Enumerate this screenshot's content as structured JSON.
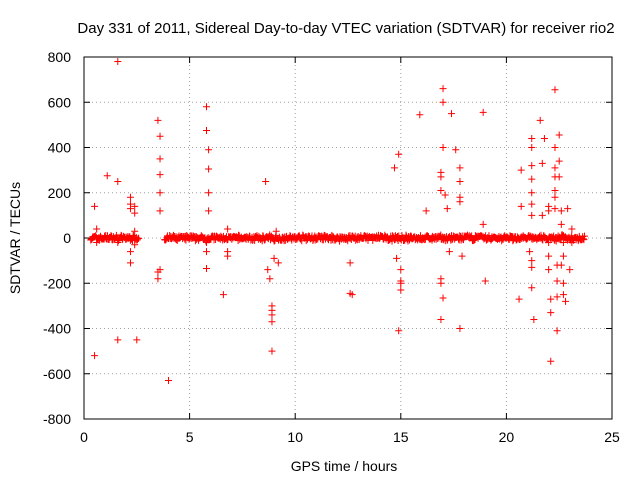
{
  "chart_data": {
    "type": "scatter",
    "title": "Day 331 of 2011, Sidereal Day-to-day VTEC variation (SDTVAR) for receiver rio2",
    "xlabel": "GPS time / hours",
    "ylabel": "SDTVAR / TECUs",
    "xlim": [
      0,
      25
    ],
    "ylim": [
      -800,
      800
    ],
    "xticks": [
      0,
      5,
      10,
      15,
      20,
      25
    ],
    "yticks": [
      -800,
      -600,
      -400,
      -200,
      0,
      200,
      400,
      600,
      800
    ],
    "xtick_labels": [
      "0",
      "5",
      "10",
      "15",
      "20",
      "25"
    ],
    "ytick_labels": [
      "-800",
      "-600",
      "-400",
      "-200",
      "0",
      "200",
      "400",
      "600",
      "800"
    ],
    "grid": true,
    "marker": "+",
    "color": "#ff0000",
    "dense_band": {
      "description": "continuous band of points near zero",
      "segments": [
        [
          0.3,
          2.6
        ],
        [
          3.8,
          23.7
        ]
      ],
      "y_range": [
        -15,
        15
      ]
    },
    "series": [
      {
        "name": "SDTVAR",
        "points": [
          [
            0.5,
            140
          ],
          [
            0.6,
            40
          ],
          [
            0.6,
            -20
          ],
          [
            0.5,
            -520
          ],
          [
            1.1,
            275
          ],
          [
            1.6,
            780
          ],
          [
            1.6,
            250
          ],
          [
            1.6,
            -20
          ],
          [
            1.6,
            -450
          ],
          [
            2.2,
            180
          ],
          [
            2.2,
            150
          ],
          [
            2.2,
            130
          ],
          [
            2.2,
            -60
          ],
          [
            2.2,
            -110
          ],
          [
            2.4,
            140
          ],
          [
            2.4,
            110
          ],
          [
            2.4,
            30
          ],
          [
            2.4,
            -30
          ],
          [
            2.5,
            -450
          ],
          [
            3.5,
            520
          ],
          [
            3.6,
            450
          ],
          [
            3.6,
            350
          ],
          [
            3.6,
            280
          ],
          [
            3.6,
            200
          ],
          [
            3.6,
            120
          ],
          [
            3.5,
            -150
          ],
          [
            3.5,
            -180
          ],
          [
            3.6,
            -140
          ],
          [
            4.0,
            -630
          ],
          [
            5.8,
            580
          ],
          [
            5.8,
            475
          ],
          [
            5.9,
            390
          ],
          [
            5.9,
            305
          ],
          [
            5.9,
            200
          ],
          [
            5.9,
            120
          ],
          [
            5.8,
            -20
          ],
          [
            5.8,
            -60
          ],
          [
            5.8,
            -135
          ],
          [
            6.6,
            -250
          ],
          [
            6.8,
            40
          ],
          [
            6.8,
            -60
          ],
          [
            6.8,
            -80
          ],
          [
            8.6,
            250
          ],
          [
            8.7,
            -140
          ],
          [
            8.8,
            -180
          ],
          [
            8.9,
            -300
          ],
          [
            8.9,
            -320
          ],
          [
            8.9,
            -340
          ],
          [
            8.9,
            -370
          ],
          [
            8.9,
            -500
          ],
          [
            9.0,
            -90
          ],
          [
            9.1,
            30
          ],
          [
            9.2,
            -110
          ],
          [
            12.6,
            -245
          ],
          [
            12.7,
            -250
          ],
          [
            12.6,
            -110
          ],
          [
            14.7,
            310
          ],
          [
            14.8,
            -90
          ],
          [
            14.9,
            370
          ],
          [
            15.0,
            -140
          ],
          [
            15.0,
            -190
          ],
          [
            15.0,
            -200
          ],
          [
            15.0,
            -230
          ],
          [
            14.9,
            -410
          ],
          [
            15.9,
            545
          ],
          [
            16.2,
            120
          ],
          [
            16.9,
            290
          ],
          [
            16.9,
            270
          ],
          [
            16.9,
            210
          ],
          [
            16.9,
            -180
          ],
          [
            16.9,
            -200
          ],
          [
            16.9,
            -360
          ],
          [
            17.0,
            660
          ],
          [
            17.0,
            600
          ],
          [
            17.0,
            400
          ],
          [
            17.0,
            -265
          ],
          [
            17.1,
            190
          ],
          [
            17.2,
            130
          ],
          [
            17.3,
            -60
          ],
          [
            17.4,
            550
          ],
          [
            17.6,
            390
          ],
          [
            17.8,
            310
          ],
          [
            17.8,
            250
          ],
          [
            17.8,
            180
          ],
          [
            17.8,
            160
          ],
          [
            17.8,
            -400
          ],
          [
            17.9,
            -80
          ],
          [
            18.9,
            555
          ],
          [
            18.9,
            60
          ],
          [
            19.0,
            -190
          ],
          [
            20.7,
            300
          ],
          [
            20.7,
            140
          ],
          [
            20.6,
            -270
          ],
          [
            21.2,
            440
          ],
          [
            21.2,
            400
          ],
          [
            21.2,
            320
          ],
          [
            21.2,
            260
          ],
          [
            21.2,
            200
          ],
          [
            21.2,
            150
          ],
          [
            21.2,
            100
          ],
          [
            21.1,
            -60
          ],
          [
            21.2,
            -100
          ],
          [
            21.2,
            -130
          ],
          [
            21.2,
            -220
          ],
          [
            21.3,
            -360
          ],
          [
            21.6,
            520
          ],
          [
            21.7,
            330
          ],
          [
            21.7,
            100
          ],
          [
            21.8,
            440
          ],
          [
            22.0,
            140
          ],
          [
            22.0,
            120
          ],
          [
            22.0,
            -20
          ],
          [
            22.0,
            -80
          ],
          [
            22.0,
            -140
          ],
          [
            22.1,
            -270
          ],
          [
            22.1,
            -330
          ],
          [
            22.1,
            -545
          ],
          [
            22.3,
            655
          ],
          [
            22.3,
            400
          ],
          [
            22.3,
            310
          ],
          [
            22.3,
            270
          ],
          [
            22.3,
            210
          ],
          [
            22.3,
            180
          ],
          [
            22.3,
            130
          ],
          [
            22.4,
            -120
          ],
          [
            22.4,
            -190
          ],
          [
            22.4,
            -260
          ],
          [
            22.4,
            -410
          ],
          [
            22.5,
            455
          ],
          [
            22.5,
            340
          ],
          [
            22.5,
            270
          ],
          [
            22.6,
            120
          ],
          [
            22.6,
            60
          ],
          [
            22.6,
            -120
          ],
          [
            22.7,
            -20
          ],
          [
            22.7,
            -80
          ],
          [
            22.7,
            -200
          ],
          [
            22.7,
            -250
          ],
          [
            22.8,
            -280
          ],
          [
            22.9,
            130
          ],
          [
            23.0,
            -140
          ],
          [
            23.1,
            40
          ],
          [
            23.1,
            -20
          ]
        ]
      }
    ]
  }
}
